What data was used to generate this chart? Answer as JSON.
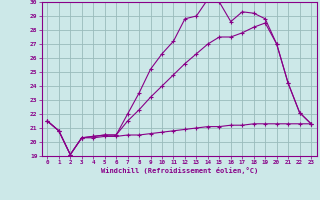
{
  "xlabel": "Windchill (Refroidissement éolien,°C)",
  "xlim": [
    -0.5,
    23.5
  ],
  "ylim": [
    19,
    30
  ],
  "yticks": [
    19,
    20,
    21,
    22,
    23,
    24,
    25,
    26,
    27,
    28,
    29,
    30
  ],
  "xticks": [
    0,
    1,
    2,
    3,
    4,
    5,
    6,
    7,
    8,
    9,
    10,
    11,
    12,
    13,
    14,
    15,
    16,
    17,
    18,
    19,
    20,
    21,
    22,
    23
  ],
  "bg_color": "#cce8e8",
  "line_color": "#880088",
  "grid_color": "#99bbbb",
  "series": [
    {
      "x": [
        0,
        1,
        2,
        3,
        4,
        5,
        6,
        7,
        8,
        9,
        10,
        11,
        12,
        13,
        14,
        15,
        16,
        17,
        18,
        19,
        20,
        21,
        22,
        23
      ],
      "y": [
        21.5,
        20.8,
        19.1,
        20.3,
        20.4,
        20.5,
        20.5,
        22.0,
        23.5,
        25.2,
        26.3,
        27.2,
        28.8,
        29.0,
        30.2,
        30.0,
        28.6,
        29.3,
        29.2,
        28.8,
        27.0,
        24.2,
        22.1,
        21.3
      ]
    },
    {
      "x": [
        0,
        1,
        2,
        3,
        4,
        5,
        6,
        7,
        8,
        9,
        10,
        11,
        12,
        13,
        14,
        15,
        16,
        17,
        18,
        19,
        20,
        21,
        22,
        23
      ],
      "y": [
        21.5,
        20.8,
        19.1,
        20.3,
        20.4,
        20.5,
        20.5,
        21.5,
        22.3,
        23.2,
        24.0,
        24.8,
        25.6,
        26.3,
        27.0,
        27.5,
        27.5,
        27.8,
        28.2,
        28.5,
        27.0,
        24.2,
        22.1,
        21.3
      ]
    },
    {
      "x": [
        0,
        1,
        2,
        3,
        4,
        5,
        6,
        7,
        8,
        9,
        10,
        11,
        12,
        13,
        14,
        15,
        16,
        17,
        18,
        19,
        20,
        21,
        22,
        23
      ],
      "y": [
        21.5,
        20.8,
        19.1,
        20.3,
        20.3,
        20.4,
        20.4,
        20.5,
        20.5,
        20.6,
        20.7,
        20.8,
        20.9,
        21.0,
        21.1,
        21.1,
        21.2,
        21.2,
        21.3,
        21.3,
        21.3,
        21.3,
        21.3,
        21.3
      ]
    }
  ]
}
